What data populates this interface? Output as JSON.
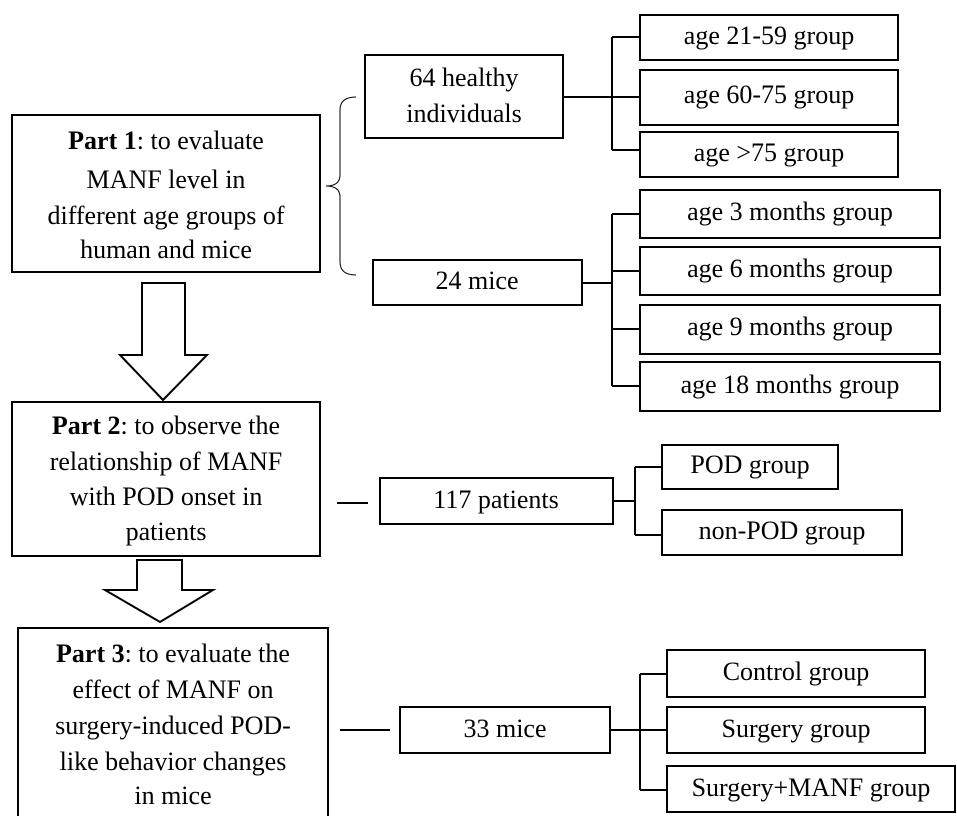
{
  "parts": [
    {
      "title": "Part 1",
      "lines": [
        ": to evaluate",
        "MANF level in",
        "different age groups of",
        "human and mice"
      ]
    },
    {
      "title": "Part 2",
      "lines": [
        ": to observe the",
        "relationship of MANF",
        "with POD onset in",
        "patients"
      ]
    },
    {
      "title": "Part 3",
      "lines": [
        ": to evaluate the",
        "effect of MANF on",
        "surgery-induced POD-",
        "like behavior changes",
        "in mice"
      ]
    }
  ],
  "cohorts": [
    {
      "label": [
        "64 healthy",
        "individuals"
      ],
      "groups": [
        "age 21-59 group",
        "age 60-75 group",
        "age >75 group"
      ]
    },
    {
      "label": [
        "24 mice"
      ],
      "groups": [
        "age 3 months group",
        "age 6 months group",
        "age 9 months group",
        "age 18 months group"
      ]
    },
    {
      "label": [
        "117 patients"
      ],
      "groups": [
        "POD group",
        "non-POD group"
      ]
    },
    {
      "label": [
        "33 mice"
      ],
      "groups": [
        "Control group",
        "Surgery group",
        "Surgery+MANF group"
      ]
    }
  ]
}
